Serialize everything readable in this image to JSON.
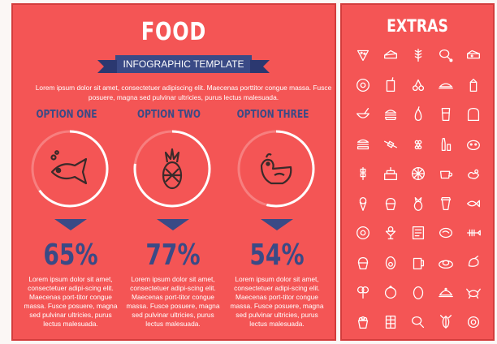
{
  "title": "FOOD",
  "ribbon": "INFOGRAPHIC TEMPLATE",
  "intro": "Lorem ipsum dolor sit amet, consectetuer adipiscing elit. Maecenas porttitor congue massa. Fusce posuere, magna sed pulvinar ultricies, purus lectus malesuada.",
  "colors": {
    "background": "#f45555",
    "accent": "#3a4a86",
    "text": "#ffffff"
  },
  "options": [
    {
      "label": "OPTION ONE",
      "percent": 65,
      "percent_text": "65%",
      "icon": "fish-icon",
      "description": "Lorem ipsum dolor sit amet, consectetuer adipi-scing elit. Maecenas port-titor congue massa. Fusce posuere, magna sed pulvinar ultricies, purus lectus malesuada."
    },
    {
      "label": "OPTION TWO",
      "percent": 77,
      "percent_text": "77%",
      "icon": "pineapple-icon",
      "description": "Lorem ipsum dolor sit amet, consectetuer adipi-scing elit. Maecenas port-titor congue massa. Fusce posuere, magna sed pulvinar ultricies, purus lectus malesuada."
    },
    {
      "label": "OPTION THREE",
      "percent": 54,
      "percent_text": "54%",
      "icon": "chicken-icon",
      "description": "Lorem ipsum dolor sit amet, consectetuer adipi-scing elit. Maecenas port-titor congue massa. Fusce posuere, magna sed pulvinar ultricies, purus lectus malesuada."
    }
  ],
  "extras": {
    "title": "EXTRAS",
    "icons": [
      "pizza-slice-icon",
      "cake-slice-icon",
      "wheat-icon",
      "drumstick-icon",
      "cheese-icon",
      "fried-egg-icon",
      "juice-box-icon",
      "cherries-icon",
      "roast-chicken-icon",
      "milk-carton-icon",
      "soup-bowl-icon",
      "burger-icon",
      "pear-icon",
      "glass-icon",
      "bread-icon",
      "sandwich-icon",
      "candy-icon",
      "grapes-icon",
      "bottles-icon",
      "pig-icon",
      "skewer-icon",
      "birthday-cake-icon",
      "orange-slice-icon",
      "coffee-cup-icon",
      "duck-icon",
      "ice-cream-icon",
      "cupcake-icon",
      "pineapple-icon",
      "takeaway-cup-icon",
      "fish-icon",
      "donut-icon",
      "sundae-icon",
      "menu-card-icon",
      "steak-icon",
      "fish-skeleton-icon",
      "muffin-icon",
      "avocado-icon",
      "beer-mug-icon",
      "meat-dish-icon",
      "shrimp-icon",
      "broccoli-icon",
      "tomato-icon",
      "egg-icon",
      "cloche-icon",
      "crab-icon",
      "popcorn-icon",
      "chocolate-bar-icon",
      "chicken-leg-icon",
      "lobster-icon",
      "sushi-icon"
    ]
  }
}
